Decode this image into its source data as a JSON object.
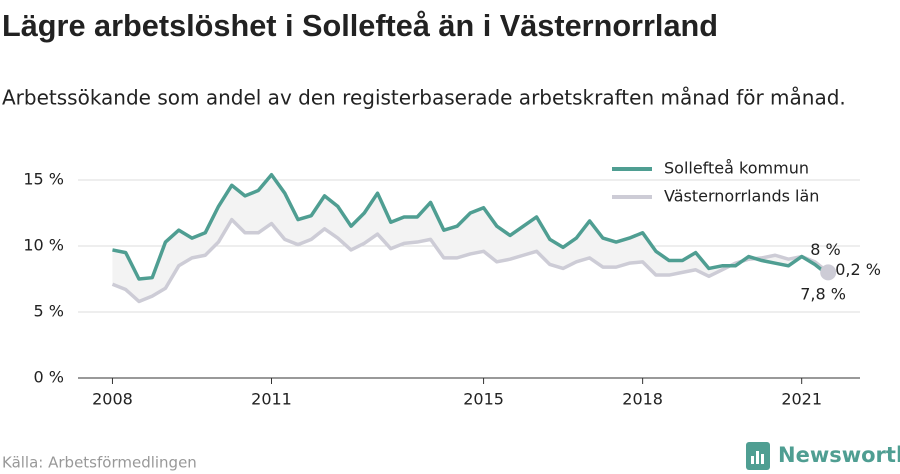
{
  "chart_data": {
    "type": "line",
    "title": "Lägre arbetslöshet i Sollefteå än i Västernorrland",
    "subtitle": "Arbetssökande som andel av den registerbaserade arbetskraften månad för månad.",
    "source": "Källa: Arbetsförmedlingen",
    "logo": "Newsworthy",
    "x": [
      2008,
      2008.25,
      2008.5,
      2008.75,
      2009,
      2009.25,
      2009.5,
      2009.75,
      2010,
      2010.25,
      2010.5,
      2010.75,
      2011,
      2011.25,
      2011.5,
      2011.75,
      2012,
      2012.25,
      2012.5,
      2012.75,
      2013,
      2013.25,
      2013.5,
      2013.75,
      2014,
      2014.25,
      2014.5,
      2014.75,
      2015,
      2015.25,
      2015.5,
      2015.75,
      2016,
      2016.25,
      2016.5,
      2016.75,
      2017,
      2017.25,
      2017.5,
      2017.75,
      2018,
      2018.25,
      2018.5,
      2018.75,
      2019,
      2019.25,
      2019.5,
      2019.75,
      2020,
      2020.25,
      2020.5,
      2020.75,
      2021,
      2021.25,
      2021.5
    ],
    "series": [
      {
        "name": "Sollefteå kommun",
        "color": "#4f9e92",
        "values": [
          9.7,
          9.5,
          7.5,
          7.6,
          10.3,
          11.2,
          10.6,
          11.0,
          13.0,
          14.6,
          13.8,
          14.2,
          15.4,
          14.0,
          12.0,
          12.3,
          13.8,
          13.0,
          11.5,
          12.5,
          14.0,
          11.8,
          12.2,
          12.2,
          13.3,
          11.2,
          11.5,
          12.5,
          12.9,
          11.5,
          10.8,
          11.5,
          12.2,
          10.5,
          9.9,
          10.6,
          11.9,
          10.6,
          10.3,
          10.6,
          11.0,
          9.6,
          8.9,
          8.9,
          9.5,
          8.3,
          8.5,
          8.5,
          9.2,
          8.9,
          8.7,
          8.5,
          9.2,
          8.6,
          7.8
        ]
      },
      {
        "name": "Västernorrlands län",
        "color": "#cdccd6",
        "values": [
          7.1,
          6.7,
          5.8,
          6.2,
          6.8,
          8.5,
          9.1,
          9.3,
          10.3,
          12.0,
          11.0,
          11.0,
          11.7,
          10.5,
          10.1,
          10.5,
          11.3,
          10.6,
          9.7,
          10.2,
          10.9,
          9.8,
          10.2,
          10.3,
          10.5,
          9.1,
          9.1,
          9.4,
          9.6,
          8.8,
          9.0,
          9.3,
          9.6,
          8.6,
          8.3,
          8.8,
          9.1,
          8.4,
          8.4,
          8.7,
          8.8,
          7.8,
          7.8,
          8.0,
          8.2,
          7.7,
          8.2,
          8.7,
          9.0,
          9.1,
          9.3,
          9.0,
          9.2,
          8.8,
          8.0
        ]
      }
    ],
    "annotations": [
      "8 %",
      "0,2 %",
      "7,8 %"
    ],
    "xlim": [
      2007.35,
      2022.1
    ],
    "xticks": [
      2008,
      2011,
      2015,
      2018,
      2021
    ],
    "ylim": [
      0,
      17
    ],
    "yticks": [
      {
        "value": 0,
        "label": "0 %"
      },
      {
        "value": 5,
        "label": "5 %"
      },
      {
        "value": 10,
        "label": "10 %"
      },
      {
        "value": 15,
        "label": "15 %"
      }
    ],
    "grid": true,
    "legend": "top-right"
  }
}
